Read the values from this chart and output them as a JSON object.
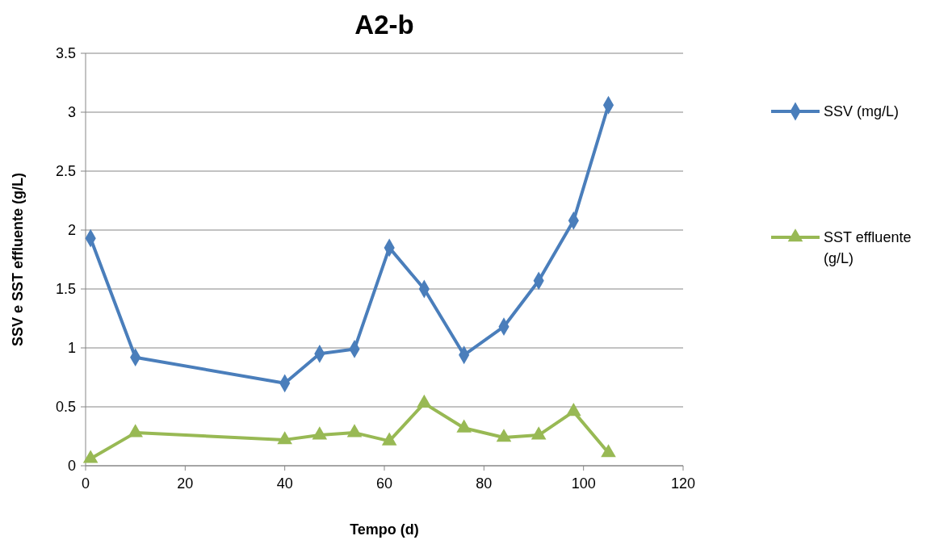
{
  "chart_data": {
    "type": "line",
    "title": "A2-b",
    "xlabel": "Tempo (d)",
    "ylabel": "SSV e SST effluente (g/L)",
    "x": [
      1,
      10,
      40,
      47,
      54,
      61,
      68,
      76,
      84,
      91,
      98,
      105
    ],
    "series": [
      {
        "name": "SSV (mg/L)",
        "color": "#4a7ebb",
        "marker": "diamond",
        "values": [
          1.93,
          0.92,
          0.7,
          0.95,
          0.99,
          1.85,
          1.5,
          0.94,
          1.18,
          1.57,
          2.08,
          3.06
        ]
      },
      {
        "name": "SST effluente (g/L)",
        "color": "#98b954",
        "marker": "triangle",
        "values": [
          0.06,
          0.28,
          0.22,
          0.26,
          0.28,
          0.21,
          0.53,
          0.32,
          0.24,
          0.26,
          0.46,
          0.11
        ]
      }
    ],
    "xlim": [
      0,
      120
    ],
    "xticks": [
      0,
      20,
      40,
      60,
      80,
      100,
      120
    ],
    "ylim": [
      0,
      3.5
    ],
    "yticks": [
      0,
      0.5,
      1,
      1.5,
      2,
      2.5,
      3,
      3.5
    ],
    "grid": "y",
    "legend": "right",
    "line_style": "solid"
  }
}
